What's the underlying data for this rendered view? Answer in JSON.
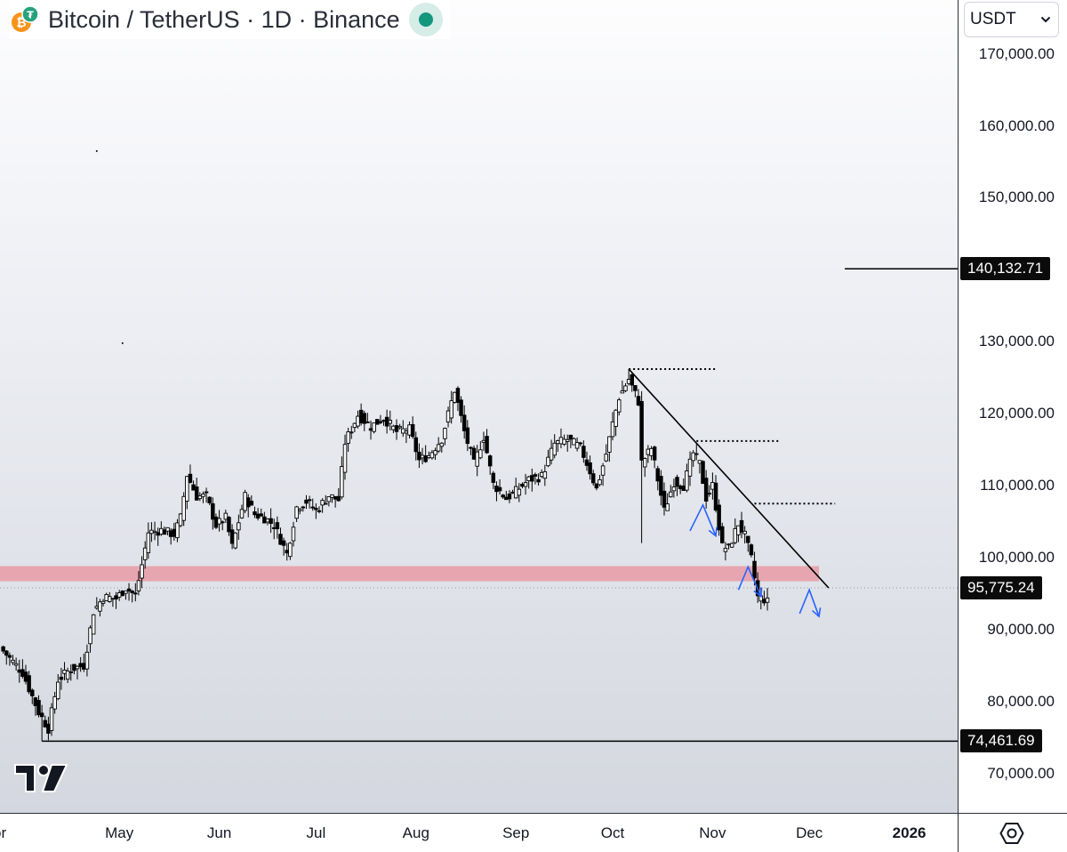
{
  "header": {
    "title": "Bitcoin / TetherUS · 1D · Binance",
    "status_color": "#12967c"
  },
  "currency_select": {
    "value": "USDT"
  },
  "icons": {
    "symbol": "bitcoin-tether-icon",
    "status": "market-open-dot-icon",
    "dropdown": "chevron-down-icon",
    "logo": "tradingview-logo-icon",
    "settings": "hexagon-settings-icon"
  },
  "chart_data": {
    "type": "candlestick",
    "title": "Bitcoin / TetherUS · 1D · Binance",
    "y_axis": {
      "ticks": [
        70000,
        80000,
        90000,
        100000,
        110000,
        120000,
        130000,
        150000,
        160000,
        170000
      ],
      "tick_labels": [
        "70,000.00",
        "80,000.00",
        "90,000.00",
        "100,000.00",
        "110,000.00",
        "120,000.00",
        "130,000.00",
        "150,000.00",
        "160,000.00",
        "170,000.00"
      ],
      "ylim": [
        64500,
        177500
      ]
    },
    "x_axis": {
      "tick_labels": [
        "or",
        "May",
        "Jun",
        "Jul",
        "Aug",
        "Sep",
        "Oct",
        "Nov",
        "Dec",
        "2026"
      ],
      "tick_dates": [
        "2025-04-01",
        "2025-05-01",
        "2025-06-01",
        "2025-07-01",
        "2025-08-01",
        "2025-09-01",
        "2025-10-01",
        "2025-11-01",
        "2025-12-01",
        "2026-01-01"
      ],
      "bold_labels": [
        "2026"
      ],
      "xlim": [
        "2025-03-25",
        "2026-01-16"
      ]
    },
    "price_labels": [
      {
        "value": 140132.71,
        "label": "140,132.71"
      },
      {
        "value": 95775.24,
        "label": "95,775.24"
      },
      {
        "value": 74461.69,
        "label": "74,461.69"
      }
    ],
    "price_path": [
      [
        "2025-03-25",
        87500
      ],
      [
        "2025-04-01",
        84000
      ],
      [
        "2025-04-06",
        78500
      ],
      [
        "2025-04-09",
        76200
      ],
      [
        "2025-04-12",
        83000
      ],
      [
        "2025-04-16",
        84500
      ],
      [
        "2025-04-20",
        85000
      ],
      [
        "2025-04-23",
        92500
      ],
      [
        "2025-04-26",
        94500
      ],
      [
        "2025-04-30",
        94300
      ],
      [
        "2025-05-03",
        95800
      ],
      [
        "2025-05-06",
        94700
      ],
      [
        "2025-05-08",
        99000
      ],
      [
        "2025-05-10",
        103500
      ],
      [
        "2025-05-14",
        103800
      ],
      [
        "2025-05-18",
        103200
      ],
      [
        "2025-05-20",
        105500
      ],
      [
        "2025-05-22",
        111500
      ],
      [
        "2025-05-25",
        108500
      ],
      [
        "2025-05-28",
        108500
      ],
      [
        "2025-05-31",
        104500
      ],
      [
        "2025-06-03",
        105500
      ],
      [
        "2025-06-05",
        101500
      ],
      [
        "2025-06-09",
        108500
      ],
      [
        "2025-06-12",
        106000
      ],
      [
        "2025-06-15",
        105500
      ],
      [
        "2025-06-18",
        104500
      ],
      [
        "2025-06-22",
        100500
      ],
      [
        "2025-06-25",
        107000
      ],
      [
        "2025-06-28",
        107800
      ],
      [
        "2025-07-01",
        106500
      ],
      [
        "2025-07-05",
        108600
      ],
      [
        "2025-07-08",
        108000
      ],
      [
        "2025-07-10",
        116000
      ],
      [
        "2025-07-14",
        119800
      ],
      [
        "2025-07-18",
        118200
      ],
      [
        "2025-07-22",
        119400
      ],
      [
        "2025-07-26",
        117500
      ],
      [
        "2025-07-30",
        117800
      ],
      [
        "2025-08-02",
        113500
      ],
      [
        "2025-08-05",
        114200
      ],
      [
        "2025-08-09",
        116500
      ],
      [
        "2025-08-13",
        123300
      ],
      [
        "2025-08-16",
        117500
      ],
      [
        "2025-08-19",
        113000
      ],
      [
        "2025-08-22",
        116800
      ],
      [
        "2025-08-25",
        110200
      ],
      [
        "2025-08-29",
        108200
      ],
      [
        "2025-09-01",
        109200
      ],
      [
        "2025-09-05",
        110800
      ],
      [
        "2025-09-09",
        111300
      ],
      [
        "2025-09-13",
        115800
      ],
      [
        "2025-09-17",
        116400
      ],
      [
        "2025-09-21",
        115300
      ],
      [
        "2025-09-24",
        112000
      ],
      [
        "2025-09-26",
        109500
      ],
      [
        "2025-09-29",
        114400
      ],
      [
        "2025-10-01",
        118600
      ],
      [
        "2025-10-03",
        122300
      ],
      [
        "2025-10-06",
        124800
      ],
      [
        "2025-10-09",
        121700
      ],
      [
        "2025-10-10",
        113200
      ],
      [
        "2025-10-13",
        115200
      ],
      [
        "2025-10-17",
        106500
      ],
      [
        "2025-10-20",
        110500
      ],
      [
        "2025-10-23",
        110000
      ],
      [
        "2025-10-26",
        114500
      ],
      [
        "2025-10-28",
        113000
      ],
      [
        "2025-10-30",
        108300
      ],
      [
        "2025-11-01",
        110000
      ],
      [
        "2025-11-04",
        101500
      ],
      [
        "2025-11-06",
        101300
      ],
      [
        "2025-11-09",
        104700
      ],
      [
        "2025-11-11",
        103000
      ],
      [
        "2025-11-13",
        99800
      ],
      [
        "2025-11-15",
        94500
      ],
      [
        "2025-11-17",
        94200
      ],
      [
        "2025-11-18",
        93800
      ]
    ],
    "wick_extremes": [
      {
        "date": "2025-04-07",
        "low": 74461.69
      },
      {
        "date": "2025-10-06",
        "high": 126200
      },
      {
        "date": "2025-10-10",
        "low": 102000
      }
    ],
    "annotations": {
      "support_zone": {
        "from": 96700,
        "to": 98800,
        "color": "#e8a0a8",
        "x_end": "2025-12-04"
      },
      "trendline": {
        "from": [
          "2025-10-06",
          126200
        ],
        "to": [
          "2025-12-07",
          95775.24
        ]
      },
      "dotted_levels": [
        {
          "value": 126200,
          "from": "2025-10-06",
          "to": "2025-11-02"
        },
        {
          "value": 116200,
          "from": "2025-10-27",
          "to": "2025-11-22"
        },
        {
          "value": 107500,
          "from": "2025-11-14",
          "to": "2025-12-09"
        }
      ],
      "current_price_line": {
        "value": 95775.24,
        "style": "dotted"
      },
      "level_segment": {
        "value": 140132.71,
        "from": "2025-12-12"
      },
      "bottom_line": {
        "value": 74461.69,
        "from": "2025-04-07"
      },
      "projection_arrows_color": "#2962ff",
      "projection_arrows": [
        [
          [
            "2025-10-25",
            103700
          ],
          [
            "2025-10-29",
            107300
          ],
          [
            "2025-11-02",
            103000
          ]
        ],
        [
          [
            "2025-11-09",
            95500
          ],
          [
            "2025-11-12",
            98700
          ],
          [
            "2025-11-16",
            94600
          ]
        ],
        [
          [
            "2025-11-28",
            92200
          ],
          [
            "2025-12-01",
            95500
          ],
          [
            "2025-12-04",
            91800
          ]
        ]
      ],
      "stray_dots": [
        [
          "2025-04-24",
          156500
        ],
        [
          "2025-05-02",
          129800
        ]
      ]
    },
    "colors": {
      "candles": "#000000",
      "support_zone": "#e8a0a8",
      "arrows": "#2962ff",
      "label_background": "#0b0b0b"
    },
    "grid": false,
    "legend": "none"
  }
}
